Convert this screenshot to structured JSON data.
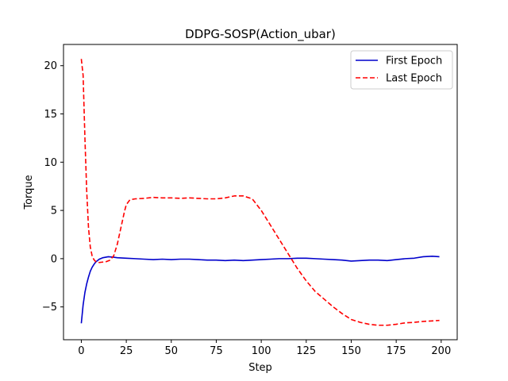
{
  "chart_data": {
    "type": "line",
    "title": "DDPG-SOSP(Action_ubar)",
    "xlabel": "Step",
    "ylabel": "Torque",
    "xlim": [
      -9.9,
      208.9
    ],
    "ylim": [
      -8.4,
      22.2
    ],
    "xticks": [
      0,
      25,
      50,
      75,
      100,
      125,
      150,
      175,
      200
    ],
    "yticks": [
      -5,
      0,
      5,
      10,
      15,
      20
    ],
    "grid": false,
    "legend_position": "top-right",
    "series": [
      {
        "name": "First Epoch",
        "color": "#0000cc",
        "dash": "solid",
        "x": [
          0,
          1,
          2,
          3,
          4,
          5,
          6,
          7,
          8,
          10,
          12,
          15,
          18,
          20,
          25,
          30,
          35,
          40,
          45,
          50,
          55,
          60,
          65,
          70,
          75,
          80,
          85,
          90,
          95,
          100,
          105,
          110,
          115,
          120,
          125,
          130,
          135,
          140,
          145,
          150,
          155,
          160,
          165,
          170,
          175,
          180,
          185,
          190,
          195,
          199
        ],
        "y": [
          -6.7,
          -4.8,
          -3.5,
          -2.6,
          -1.9,
          -1.3,
          -0.9,
          -0.6,
          -0.35,
          -0.05,
          0.1,
          0.2,
          0.15,
          0.1,
          0.05,
          0.0,
          -0.05,
          -0.1,
          -0.05,
          -0.1,
          -0.05,
          -0.05,
          -0.1,
          -0.15,
          -0.15,
          -0.2,
          -0.15,
          -0.2,
          -0.15,
          -0.1,
          -0.05,
          0.0,
          0.0,
          0.05,
          0.05,
          0.0,
          -0.05,
          -0.1,
          -0.15,
          -0.25,
          -0.2,
          -0.15,
          -0.15,
          -0.2,
          -0.1,
          0.0,
          0.05,
          0.2,
          0.25,
          0.2
        ]
      },
      {
        "name": "Last Epoch",
        "color": "#ff0000",
        "dash": "dashed",
        "x": [
          0,
          1,
          2,
          3,
          4,
          5,
          6,
          7,
          8,
          10,
          12,
          14,
          16,
          18,
          20,
          22,
          24,
          25,
          27,
          30,
          35,
          40,
          45,
          50,
          55,
          60,
          65,
          70,
          75,
          80,
          85,
          90,
          95,
          100,
          105,
          110,
          115,
          120,
          125,
          130,
          135,
          140,
          145,
          150,
          155,
          160,
          165,
          170,
          175,
          180,
          185,
          190,
          195,
          199
        ],
        "y": [
          20.7,
          19.0,
          12.5,
          7.0,
          3.2,
          1.2,
          0.3,
          -0.1,
          -0.3,
          -0.4,
          -0.35,
          -0.3,
          -0.15,
          0.3,
          1.5,
          3.2,
          4.9,
          5.6,
          6.1,
          6.2,
          6.25,
          6.35,
          6.3,
          6.3,
          6.25,
          6.3,
          6.25,
          6.2,
          6.2,
          6.3,
          6.5,
          6.5,
          6.2,
          5.0,
          3.5,
          2.0,
          0.5,
          -1.0,
          -2.3,
          -3.4,
          -4.2,
          -5.0,
          -5.7,
          -6.3,
          -6.6,
          -6.8,
          -6.9,
          -6.9,
          -6.8,
          -6.65,
          -6.6,
          -6.5,
          -6.45,
          -6.4
        ]
      }
    ]
  }
}
